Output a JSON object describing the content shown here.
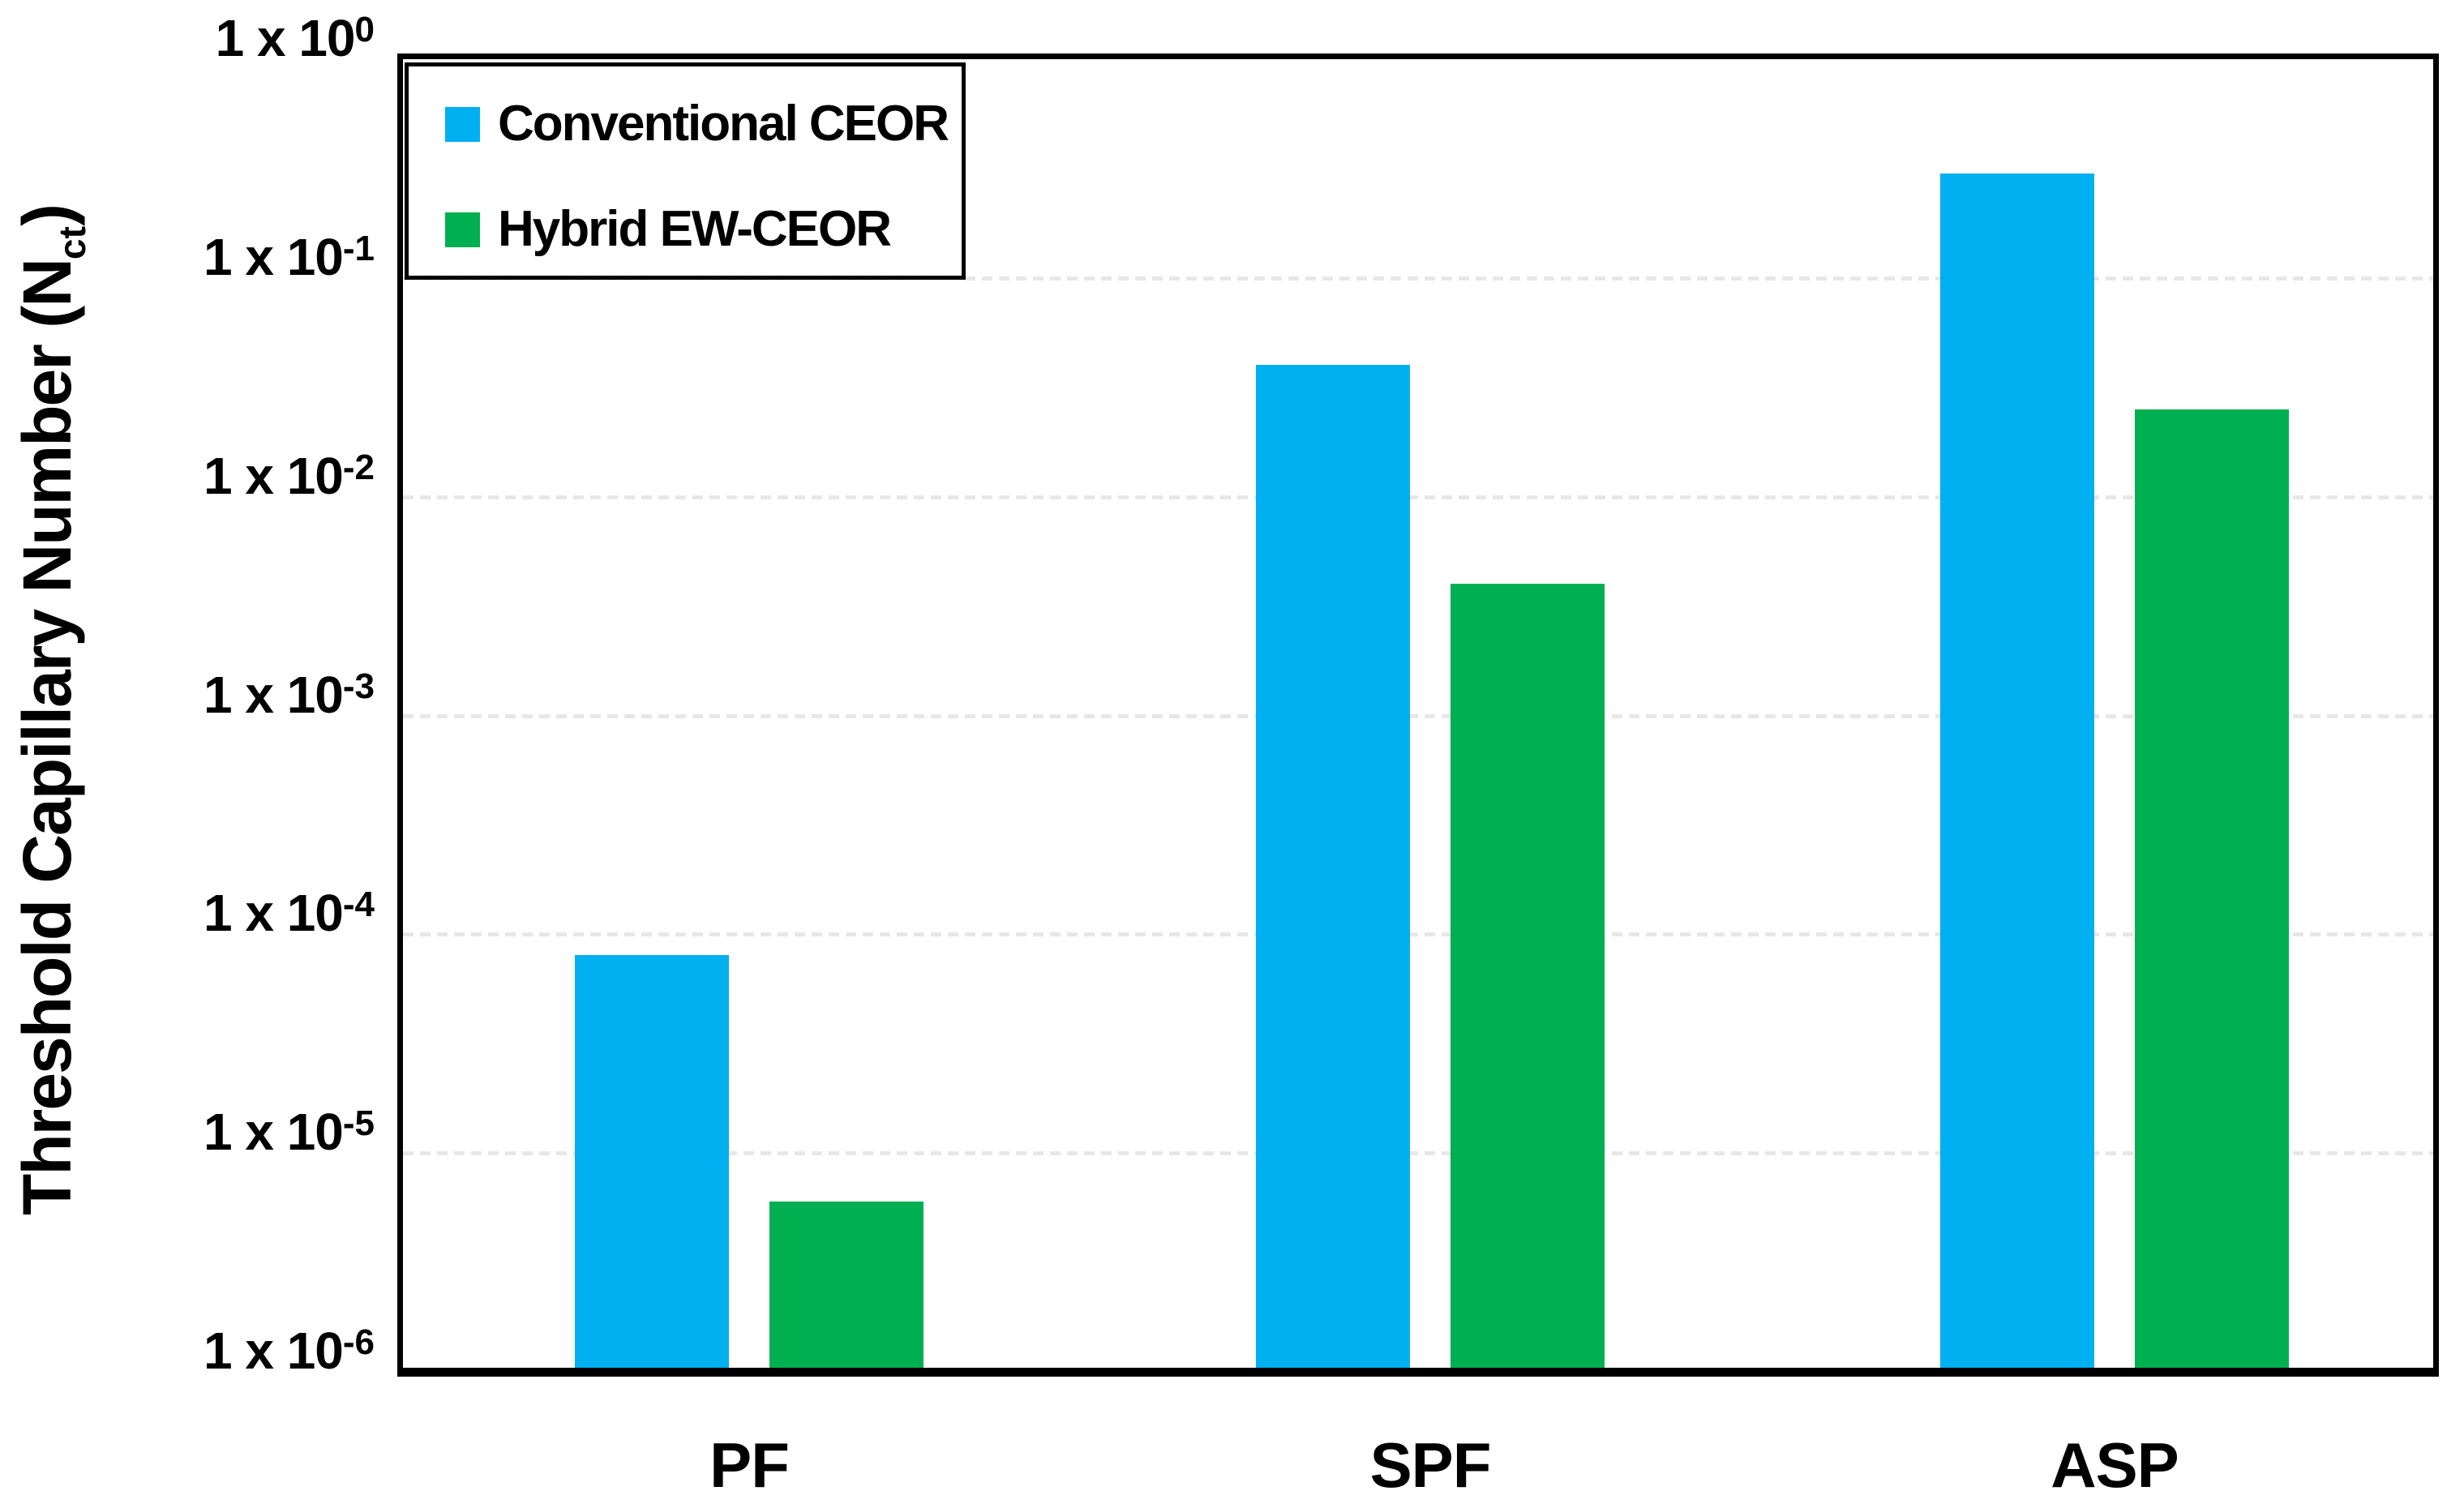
{
  "chart_data": {
    "type": "bar",
    "y_scale": "log",
    "title": "",
    "xlabel": "",
    "ylabel": "Threshold Capillary Number (Nct)",
    "ylabel_parts": {
      "main": "Threshold Capillary Number (N",
      "sub": "ct",
      "close": ")"
    },
    "categories": [
      "PF",
      "SPF",
      "ASP"
    ],
    "series": [
      {
        "name": "Conventional CEOR",
        "color": "#00B0F0",
        "values": [
          8e-05,
          0.04,
          0.3
        ]
      },
      {
        "name": "Hybrid EW-CEOR",
        "color": "#00B050",
        "values": [
          6e-06,
          0.004,
          0.025
        ]
      }
    ],
    "ylim": [
      1e-06,
      1
    ],
    "y_ticks": [
      {
        "base": "1 x 10",
        "exponent": "0",
        "value": 1
      },
      {
        "base": "1 x 10",
        "exponent": "-1",
        "value": 0.1
      },
      {
        "base": "1 x 10",
        "exponent": "-2",
        "value": 0.01
      },
      {
        "base": "1 x 10",
        "exponent": "-3",
        "value": 0.001
      },
      {
        "base": "1 x 10",
        "exponent": "-4",
        "value": 0.0001
      },
      {
        "base": "1 x 10",
        "exponent": "-5",
        "value": 1e-05
      },
      {
        "base": "1 x 10",
        "exponent": "-6",
        "value": 1e-06
      }
    ],
    "grid": "horizontal-dotted",
    "legend_position": "top-left-inside",
    "colors": {
      "grid": "#e7e7e7",
      "axis": "#000000",
      "text": "#000000",
      "background": "#ffffff"
    }
  }
}
